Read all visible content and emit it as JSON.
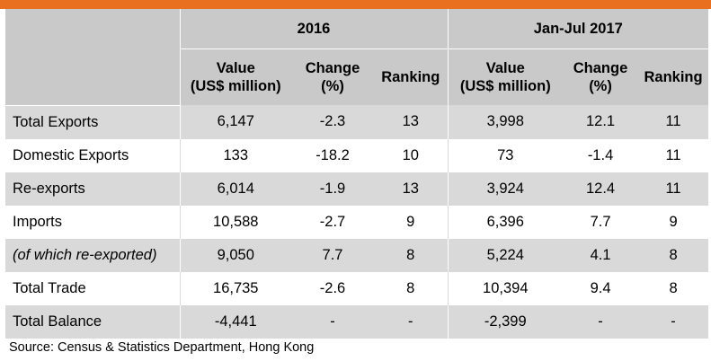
{
  "header": {
    "group1": "2016",
    "group2": "Jan-Jul 2017",
    "columns": [
      {
        "line1": "Value",
        "line2": "(US$ million)"
      },
      {
        "line1": "Change",
        "line2": "(%)"
      },
      {
        "line1": "Ranking",
        "line2": ""
      },
      {
        "line1": "Value",
        "line2": "(US$ million)"
      },
      {
        "line1": "Change",
        "line2": "(%)"
      },
      {
        "line1": "Ranking",
        "line2": ""
      }
    ]
  },
  "rows": [
    {
      "label": "Total Exports",
      "cells": [
        "6,147",
        "-2.3",
        "13",
        "3,998",
        "12.1",
        "11"
      ]
    },
    {
      "label": "Domestic Exports",
      "cells": [
        "133",
        "-18.2",
        "10",
        "73",
        "-1.4",
        "11"
      ]
    },
    {
      "label": "Re-exports",
      "cells": [
        "6,014",
        "-1.9",
        "13",
        "3,924",
        "12.4",
        "11"
      ]
    },
    {
      "label": "Imports",
      "cells": [
        "10,588",
        "-2.7",
        "9",
        "6,396",
        "7.7",
        "9"
      ]
    },
    {
      "label": "(of which re-exported)",
      "cells": [
        "9,050",
        "7.7",
        "8",
        "5,224",
        "4.1",
        "8"
      ]
    },
    {
      "label": "Total Trade",
      "cells": [
        "16,735",
        "-2.6",
        "8",
        "10,394",
        "9.4",
        "8"
      ]
    },
    {
      "label": "Total Balance",
      "cells": [
        "-4,441",
        "-",
        "-",
        "-2,399",
        "-",
        "-"
      ]
    }
  ],
  "source": "Source: Census & Statistics Department, Hong Kong",
  "colors": {
    "accent_bar": "#e8701e",
    "header_bg": "#c9c9c9",
    "shade_bg": "#d9d9d9"
  }
}
